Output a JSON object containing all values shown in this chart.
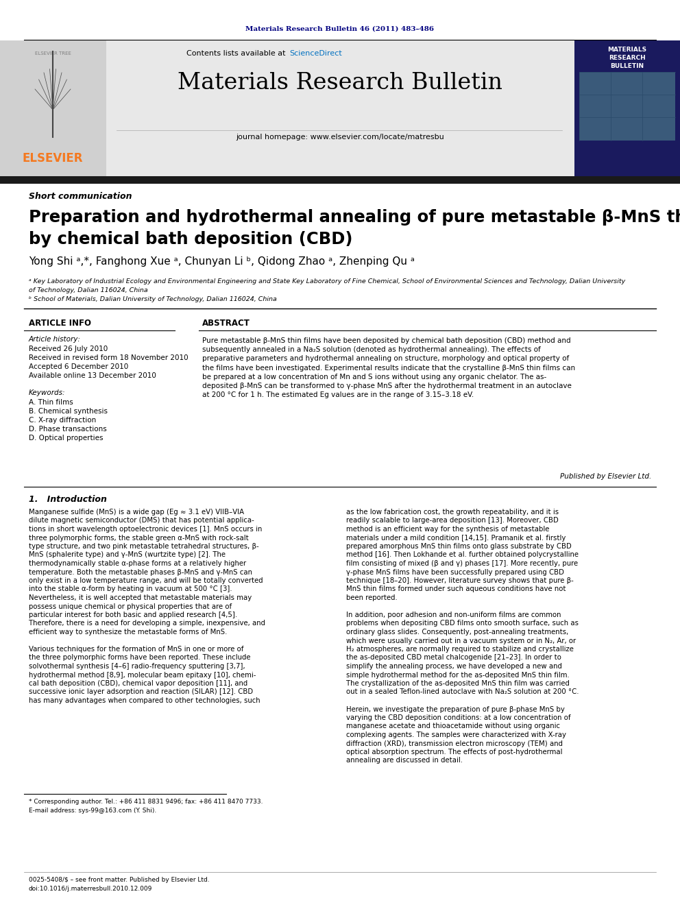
{
  "page_title_journal": "Materials Research Bulletin 46 (2011) 483–486",
  "journal_name": "Materials Research Bulletin",
  "journal_subtitle": "journal homepage: www.elsevier.com/locate/matresbu",
  "section_label": "Short communication",
  "paper_title_line1": "Preparation and hydrothermal annealing of pure metastable β-MnS thin films",
  "paper_title_line2": "by chemical bath deposition (CBD)",
  "authors": "Yong Shi ᵃ,*, Fanghong Xue ᵃ, Chunyan Li ᵇ, Qidong Zhao ᵃ, Zhenping Qu ᵃ",
  "affil_a_line1": "ᵃ Key Laboratory of Industrial Ecology and Environmental Engineering and State Key Laboratory of Fine Chemical, School of Environmental Sciences and Technology, Dalian University",
  "affil_a_line2": "of Technology, Dalian 116024, China",
  "affil_b": "ᵇ School of Materials, Dalian University of Technology, Dalian 116024, China",
  "article_info_header": "ARTICLE INFO",
  "abstract_header": "ABSTRACT",
  "article_history_label": "Article history:",
  "received": "Received 26 July 2010",
  "received_revised": "Received in revised form 18 November 2010",
  "accepted": "Accepted 6 December 2010",
  "available": "Available online 13 December 2010",
  "keywords_label": "Keywords:",
  "keyword_A": "A. Thin films",
  "keyword_B": "B. Chemical synthesis",
  "keyword_C": "C. X-ray diffraction",
  "keyword_D": "D. Phase transactions",
  "keyword_E": "D. Optical properties",
  "abstract_lines": [
    "Pure metastable β-MnS thin films have been deposited by chemical bath deposition (CBD) method and",
    "subsequently annealed in a Na₂S solution (denoted as hydrothermal annealing). The effects of",
    "preparative parameters and hydrothermal annealing on structure, morphology and optical property of",
    "the films have been investigated. Experimental results indicate that the crystalline β-MnS thin films can",
    "be prepared at a low concentration of Mn and S ions without using any organic chelator. The as-",
    "deposited β-MnS can be transformed to γ-phase MnS after the hydrothermal treatment in an autoclave",
    "at 200 °C for 1 h. The estimated Eg values are in the range of 3.15–3.18 eV."
  ],
  "published_by": "Published by Elsevier Ltd.",
  "intro_header": "1.   Introduction",
  "intro_col1_lines": [
    "Manganese sulfide (MnS) is a wide gap (Eg ≈ 3.1 eV) VIIB–VIA",
    "dilute magnetic semiconductor (DMS) that has potential applica-",
    "tions in short wavelength optoelectronic devices [1]. MnS occurs in",
    "three polymorphic forms, the stable green α-MnS with rock-salt",
    "type structure, and two pink metastable tetrahedral structures, β-",
    "MnS (sphalerite type) and γ-MnS (wurtzite type) [2]. The",
    "thermodynamically stable α-phase forms at a relatively higher",
    "temperature. Both the metastable phases β-MnS and γ-MnS can",
    "only exist in a low temperature range, and will be totally converted",
    "into the stable α-form by heating in vacuum at 500 °C [3].",
    "Nevertheless, it is well accepted that metastable materials may",
    "possess unique chemical or physical properties that are of",
    "particular interest for both basic and applied research [4,5].",
    "Therefore, there is a need for developing a simple, inexpensive, and",
    "efficient way to synthesize the metastable forms of MnS.",
    "",
    "Various techniques for the formation of MnS in one or more of",
    "the three polymorphic forms have been reported. These include",
    "solvothermal synthesis [4–6] radio-frequency sputtering [3,7],",
    "hydrothermal method [8,9], molecular beam epitaxy [10], chemi-",
    "cal bath deposition (CBD), chemical vapor deposition [11], and",
    "successive ionic layer adsorption and reaction (SILAR) [12]. CBD",
    "has many advantages when compared to other technologies, such"
  ],
  "intro_col2_lines": [
    "as the low fabrication cost, the growth repeatability, and it is",
    "readily scalable to large-area deposition [13]. Moreover, CBD",
    "method is an efficient way for the synthesis of metastable",
    "materials under a mild condition [14,15]. Pramanik et al. firstly",
    "prepared amorphous MnS thin films onto glass substrate by CBD",
    "method [16]. Then Lokhande et al. further obtained polycrystalline",
    "film consisting of mixed (β and γ) phases [17]. More recently, pure",
    "γ-phase MnS films have been successfully prepared using CBD",
    "technique [18–20]. However, literature survey shows that pure β-",
    "MnS thin films formed under such aqueous conditions have not",
    "been reported.",
    "",
    "In addition, poor adhesion and non-uniform films are common",
    "problems when depositing CBD films onto smooth surface, such as",
    "ordinary glass slides. Consequently, post-annealing treatments,",
    "which were usually carried out in a vacuum system or in N₂, Ar, or",
    "H₂ atmospheres, are normally required to stabilize and crystallize",
    "the as-deposited CBD metal chalcogenide [21–23]. In order to",
    "simplify the annealing process, we have developed a new and",
    "simple hydrothermal method for the as-deposited MnS thin film.",
    "The crystallization of the as-deposited MnS thin film was carried",
    "out in a sealed Teflon-lined autoclave with Na₂S solution at 200 °C.",
    "",
    "Herein, we investigate the preparation of pure β-phase MnS by",
    "varying the CBD deposition conditions: at a low concentration of",
    "manganese acetate and thioacetamide without using organic",
    "complexing agents. The samples were characterized with X-ray",
    "diffraction (XRD), transmission electron microscopy (TEM) and",
    "optical absorption spectrum. The effects of post-hydrothermal",
    "annealing are discussed in detail."
  ],
  "footnote_corresponding": "* Corresponding author. Tel.: +86 411 8831 9496; fax: +86 411 8470 7733.",
  "footnote_email": "E-mail address: sys-99@163.com (Y. Shi).",
  "footer_issn": "0025-5408/$ – see front matter. Published by Elsevier Ltd.",
  "footer_doi": "doi:10.1016/j.materresbull.2010.12.009",
  "bg_color": "#ffffff",
  "header_bg_color": "#e8e8e8",
  "elsevier_left_bg": "#d0d0d0",
  "dark_navy": "#000080",
  "elsevier_orange": "#f47920",
  "sciencedirect_blue": "#0070c0",
  "text_color": "#000000",
  "dark_bar_color": "#1a1a1a",
  "cover_navy": "#1a1a5e"
}
